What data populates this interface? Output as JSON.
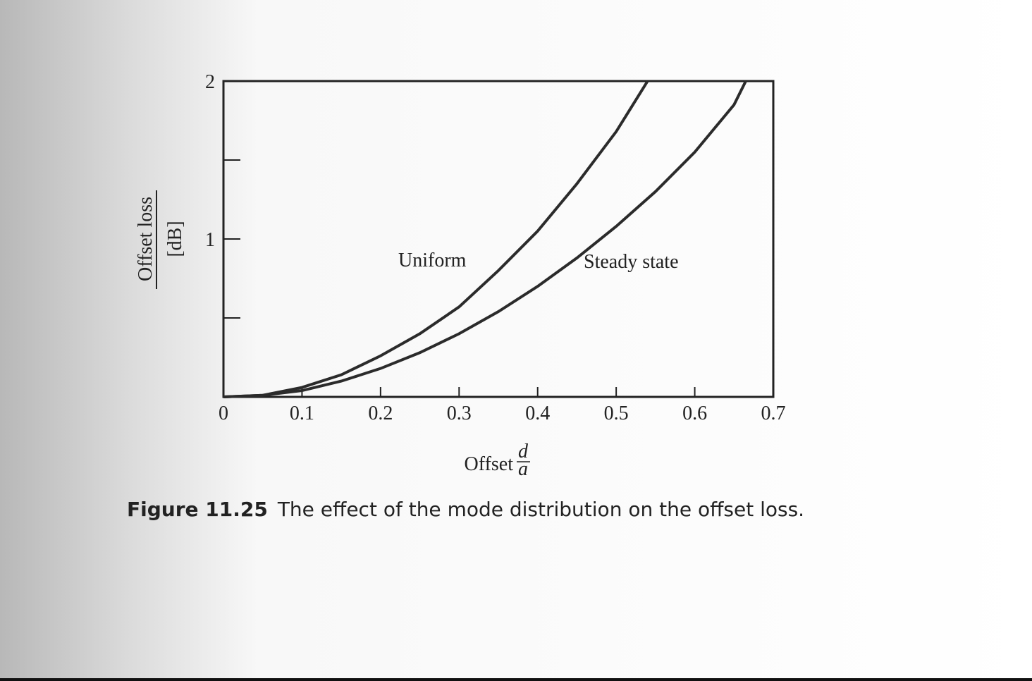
{
  "chart_data": {
    "type": "line",
    "ylabel": "Offset loss",
    "ylabel_unit": "[dB]",
    "xlabel": "Offset",
    "xlabel_numerator": "d",
    "xlabel_denominator": "a",
    "caption_label": "Figure 11.25",
    "caption": "The effect of the mode distribution on the offset loss.",
    "xlim": [
      0,
      0.7
    ],
    "ylim": [
      0,
      2
    ],
    "xticks": [
      0,
      0.1,
      0.2,
      0.3,
      0.4,
      0.5,
      0.6,
      0.7
    ],
    "yticks": [
      1,
      2
    ],
    "yminor_ticks": [
      0.5,
      1.5
    ],
    "series": [
      {
        "name": "Uniform",
        "color": "#2b2b2b",
        "x": [
          0,
          0.05,
          0.1,
          0.15,
          0.2,
          0.25,
          0.3,
          0.35,
          0.4,
          0.45,
          0.5,
          0.54
        ],
        "values": [
          0,
          0.01,
          0.06,
          0.14,
          0.26,
          0.4,
          0.57,
          0.8,
          1.05,
          1.35,
          1.68,
          2
        ]
      },
      {
        "name": "Steady state",
        "color": "#2b2b2b",
        "x": [
          0,
          0.05,
          0.1,
          0.15,
          0.2,
          0.25,
          0.3,
          0.35,
          0.4,
          0.45,
          0.5,
          0.55,
          0.6,
          0.65,
          0.665
        ],
        "values": [
          0,
          0.01,
          0.04,
          0.1,
          0.18,
          0.28,
          0.4,
          0.54,
          0.7,
          0.88,
          1.08,
          1.3,
          1.55,
          1.85,
          2
        ]
      }
    ]
  }
}
